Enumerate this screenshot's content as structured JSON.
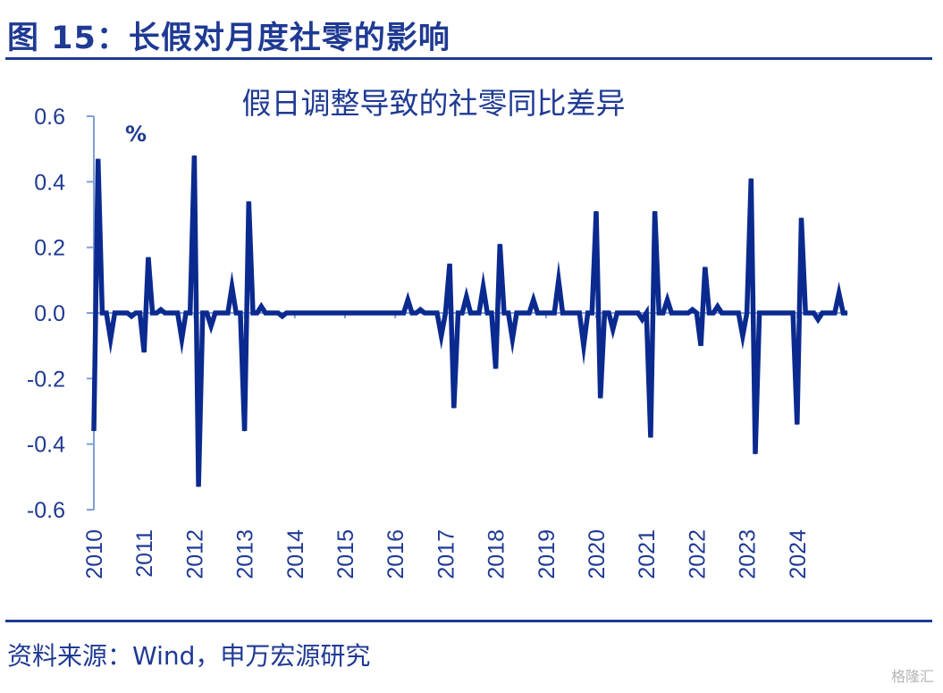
{
  "figure": {
    "title": "图 15：长假对月度社零的影响",
    "source": "资料来源：Wind，申万宏源研究",
    "watermark": "格隆汇"
  },
  "colors": {
    "brand": "#1f3a93",
    "series": "#0b2a8f",
    "axis": "#7f9fd9"
  },
  "chart_data": {
    "type": "line",
    "title": "假日调整导致的社零同比差异",
    "unit_label": "%",
    "ylim": [
      -0.6,
      0.6
    ],
    "yticks": [
      "0.6",
      "0.4",
      "0.2",
      "0.0",
      "-0.2",
      "-0.4",
      "-0.6"
    ],
    "ytick_values": [
      0.6,
      0.4,
      0.2,
      0.0,
      -0.2,
      -0.4,
      -0.6
    ],
    "x_categories": [
      "2010",
      "2011",
      "2012",
      "2013",
      "2014",
      "2015",
      "2016",
      "2017",
      "2018",
      "2019",
      "2020",
      "2021",
      "2022",
      "2023",
      "2024"
    ],
    "x_start_year": 2010,
    "x_end_year": 2025,
    "grid": false,
    "legend": "none",
    "series": [
      {
        "points": [
          [
            2010.0,
            -0.36
          ],
          [
            2010.083,
            0.47
          ],
          [
            2010.167,
            0.0
          ],
          [
            2010.25,
            0.0
          ],
          [
            2010.333,
            -0.08
          ],
          [
            2010.417,
            0.0
          ],
          [
            2010.5,
            0.0
          ],
          [
            2010.583,
            0.0
          ],
          [
            2010.667,
            0.0
          ],
          [
            2010.75,
            -0.01
          ],
          [
            2010.833,
            0.0
          ],
          [
            2010.917,
            0.0
          ],
          [
            2011.0,
            -0.12
          ],
          [
            2011.083,
            0.17
          ],
          [
            2011.167,
            0.0
          ],
          [
            2011.25,
            0.0
          ],
          [
            2011.333,
            0.01
          ],
          [
            2011.417,
            0.0
          ],
          [
            2011.5,
            0.0
          ],
          [
            2011.583,
            0.0
          ],
          [
            2011.667,
            0.0
          ],
          [
            2011.75,
            -0.08
          ],
          [
            2011.833,
            0.0
          ],
          [
            2011.917,
            0.0
          ],
          [
            2012.0,
            0.48
          ],
          [
            2012.083,
            -0.53
          ],
          [
            2012.167,
            0.0
          ],
          [
            2012.25,
            0.0
          ],
          [
            2012.333,
            -0.04
          ],
          [
            2012.417,
            0.0
          ],
          [
            2012.5,
            0.0
          ],
          [
            2012.583,
            0.0
          ],
          [
            2012.667,
            0.0
          ],
          [
            2012.75,
            0.08
          ],
          [
            2012.833,
            0.0
          ],
          [
            2012.917,
            0.0
          ],
          [
            2013.0,
            -0.36
          ],
          [
            2013.083,
            0.34
          ],
          [
            2013.167,
            0.0
          ],
          [
            2013.25,
            0.0
          ],
          [
            2013.333,
            0.02
          ],
          [
            2013.417,
            0.0
          ],
          [
            2013.5,
            0.0
          ],
          [
            2013.583,
            0.0
          ],
          [
            2013.667,
            0.0
          ],
          [
            2013.75,
            -0.01
          ],
          [
            2013.833,
            0.0
          ],
          [
            2013.917,
            0.0
          ],
          [
            2014.0,
            0.0
          ],
          [
            2015.0,
            0.0
          ],
          [
            2016.0,
            0.0
          ],
          [
            2016.083,
            0.0
          ],
          [
            2016.167,
            0.0
          ],
          [
            2016.25,
            0.04
          ],
          [
            2016.333,
            0.0
          ],
          [
            2016.417,
            0.0
          ],
          [
            2016.5,
            0.01
          ],
          [
            2016.583,
            0.0
          ],
          [
            2016.667,
            0.0
          ],
          [
            2016.75,
            0.0
          ],
          [
            2016.833,
            0.0
          ],
          [
            2016.917,
            -0.07
          ],
          [
            2017.0,
            0.0
          ],
          [
            2017.083,
            0.15
          ],
          [
            2017.167,
            -0.29
          ],
          [
            2017.25,
            0.0
          ],
          [
            2017.333,
            0.0
          ],
          [
            2017.417,
            0.05
          ],
          [
            2017.5,
            0.0
          ],
          [
            2017.583,
            0.0
          ],
          [
            2017.667,
            0.0
          ],
          [
            2017.75,
            0.08
          ],
          [
            2017.833,
            0.0
          ],
          [
            2017.917,
            0.0
          ],
          [
            2018.0,
            -0.17
          ],
          [
            2018.083,
            0.21
          ],
          [
            2018.167,
            0.0
          ],
          [
            2018.25,
            0.0
          ],
          [
            2018.333,
            -0.08
          ],
          [
            2018.417,
            0.0
          ],
          [
            2018.5,
            0.0
          ],
          [
            2018.583,
            0.0
          ],
          [
            2018.667,
            0.0
          ],
          [
            2018.75,
            0.04
          ],
          [
            2018.833,
            0.0
          ],
          [
            2018.917,
            0.0
          ],
          [
            2019.0,
            0.0
          ],
          [
            2019.083,
            0.0
          ],
          [
            2019.167,
            0.0
          ],
          [
            2019.25,
            0.1
          ],
          [
            2019.333,
            0.0
          ],
          [
            2019.417,
            0.0
          ],
          [
            2019.5,
            0.0
          ],
          [
            2019.583,
            0.0
          ],
          [
            2019.667,
            0.0
          ],
          [
            2019.75,
            -0.1
          ],
          [
            2019.833,
            0.0
          ],
          [
            2019.917,
            0.0
          ],
          [
            2020.0,
            0.31
          ],
          [
            2020.083,
            -0.26
          ],
          [
            2020.167,
            0.0
          ],
          [
            2020.25,
            0.0
          ],
          [
            2020.333,
            -0.05
          ],
          [
            2020.417,
            0.0
          ],
          [
            2020.5,
            0.0
          ],
          [
            2020.583,
            0.0
          ],
          [
            2020.667,
            0.0
          ],
          [
            2020.75,
            0.0
          ],
          [
            2020.833,
            0.0
          ],
          [
            2020.917,
            -0.02
          ],
          [
            2021.0,
            0.0
          ],
          [
            2021.083,
            -0.38
          ],
          [
            2021.167,
            0.31
          ],
          [
            2021.25,
            0.0
          ],
          [
            2021.333,
            0.0
          ],
          [
            2021.417,
            0.04
          ],
          [
            2021.5,
            0.0
          ],
          [
            2021.583,
            0.0
          ],
          [
            2021.667,
            0.0
          ],
          [
            2021.75,
            0.0
          ],
          [
            2021.833,
            0.0
          ],
          [
            2021.917,
            0.01
          ],
          [
            2022.0,
            0.0
          ],
          [
            2022.083,
            -0.1
          ],
          [
            2022.167,
            0.14
          ],
          [
            2022.25,
            0.0
          ],
          [
            2022.333,
            0.0
          ],
          [
            2022.417,
            0.02
          ],
          [
            2022.5,
            0.0
          ],
          [
            2022.583,
            0.0
          ],
          [
            2022.667,
            0.0
          ],
          [
            2022.75,
            0.0
          ],
          [
            2022.833,
            0.0
          ],
          [
            2022.917,
            -0.07
          ],
          [
            2023.0,
            0.0
          ],
          [
            2023.083,
            0.41
          ],
          [
            2023.167,
            -0.43
          ],
          [
            2023.25,
            0.0
          ],
          [
            2023.333,
            0.0
          ],
          [
            2023.417,
            0.0
          ],
          [
            2023.5,
            0.0
          ],
          [
            2023.583,
            0.0
          ],
          [
            2023.667,
            0.0
          ],
          [
            2023.75,
            0.0
          ],
          [
            2023.833,
            0.0
          ],
          [
            2023.917,
            0.0
          ],
          [
            2024.0,
            -0.34
          ],
          [
            2024.083,
            0.29
          ],
          [
            2024.167,
            0.0
          ],
          [
            2024.25,
            0.0
          ],
          [
            2024.333,
            0.0
          ],
          [
            2024.417,
            -0.02
          ],
          [
            2024.5,
            0.0
          ],
          [
            2024.583,
            0.0
          ],
          [
            2024.667,
            0.0
          ],
          [
            2024.75,
            0.0
          ],
          [
            2024.833,
            0.06
          ],
          [
            2024.917,
            0.0
          ],
          [
            2025.0,
            0.0
          ]
        ]
      }
    ]
  }
}
